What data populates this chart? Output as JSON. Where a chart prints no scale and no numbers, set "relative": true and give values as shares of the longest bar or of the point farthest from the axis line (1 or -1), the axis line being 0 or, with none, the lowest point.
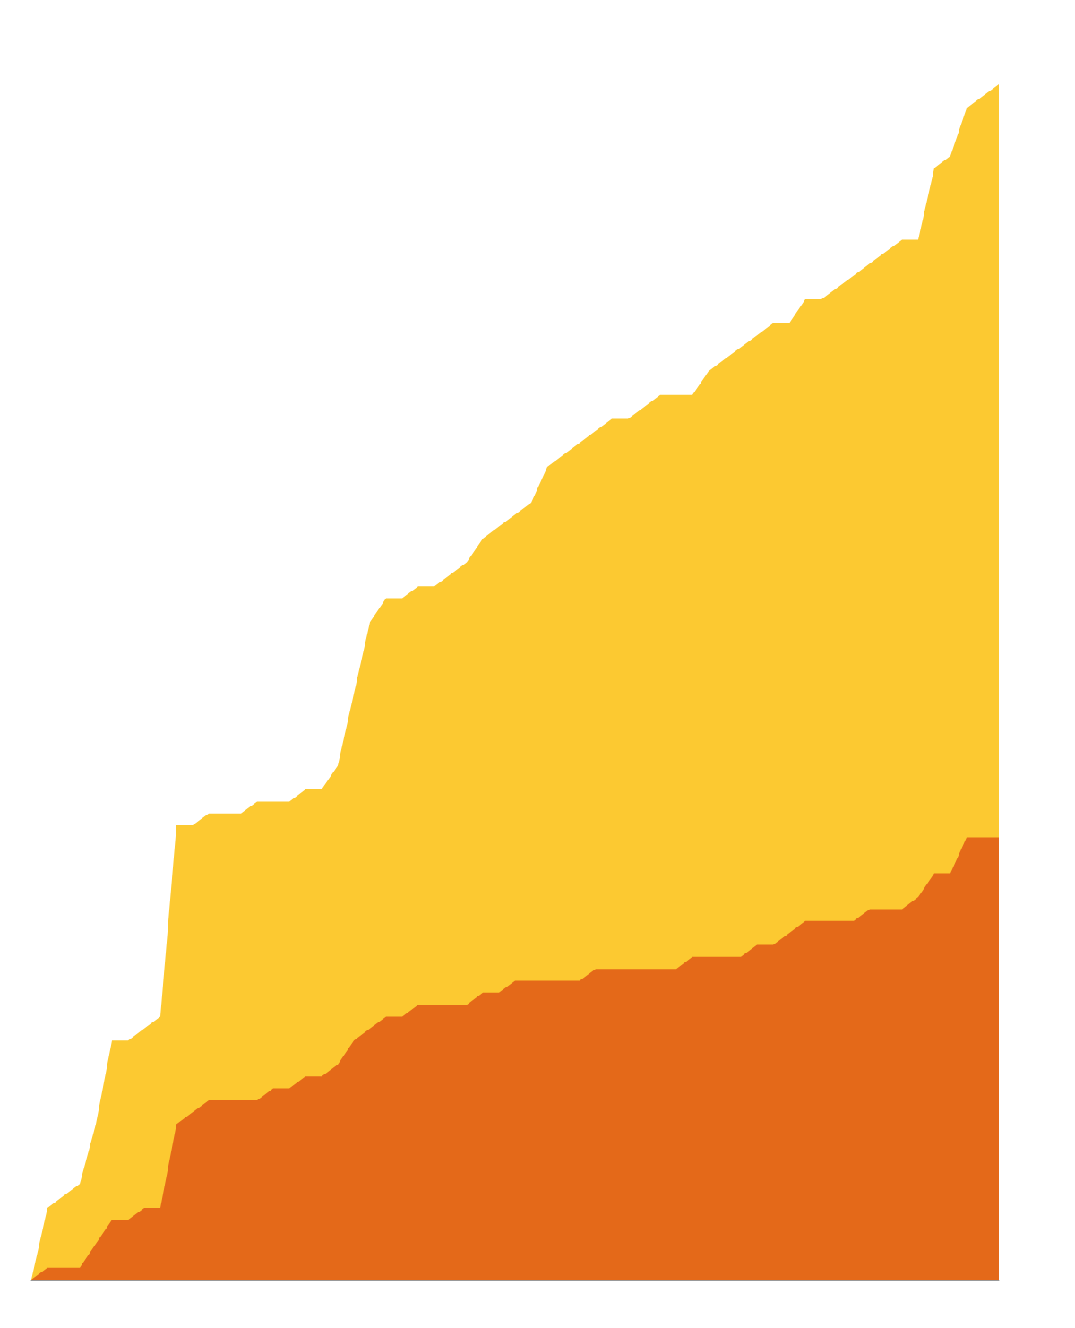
{
  "chart_data": {
    "type": "area",
    "relative": true,
    "categories": [
      null,
      null,
      null,
      null,
      null,
      null,
      null,
      null,
      null,
      null,
      null,
      null,
      null,
      null,
      null,
      null,
      null,
      null,
      null,
      null,
      null,
      null,
      null,
      null,
      null,
      null,
      null,
      null,
      null,
      null,
      null,
      null,
      null,
      null,
      null,
      null,
      null,
      null,
      null,
      null,
      null,
      null,
      null,
      null,
      null,
      null,
      null,
      null,
      null,
      null,
      null,
      null,
      null,
      null,
      null,
      null,
      null,
      null,
      null,
      null,
      null
    ],
    "series": [
      {
        "color": "#fcc931",
        "values": [
          0,
          0.06,
          0.07,
          0.08,
          0.13,
          0.2,
          0.2,
          0.21,
          0.22,
          0.38,
          0.38,
          0.39,
          0.39,
          0.39,
          0.4,
          0.4,
          0.4,
          0.41,
          0.41,
          0.43,
          0.49,
          0.55,
          0.57,
          0.57,
          0.58,
          0.58,
          0.59,
          0.6,
          0.62,
          0.63,
          0.64,
          0.65,
          0.68,
          0.69,
          0.7,
          0.71,
          0.72,
          0.72,
          0.73,
          0.74,
          0.74,
          0.74,
          0.76,
          0.77,
          0.78,
          0.79,
          0.8,
          0.8,
          0.82,
          0.82,
          0.83,
          0.84,
          0.85,
          0.86,
          0.87,
          0.87,
          0.93,
          0.94,
          0.98,
          0.99,
          1
        ]
      },
      {
        "color": "#e46919",
        "values": [
          0,
          0.01,
          0.01,
          0.01,
          0.03,
          0.05,
          0.05,
          0.06,
          0.06,
          0.13,
          0.14,
          0.15,
          0.15,
          0.15,
          0.15,
          0.16,
          0.16,
          0.17,
          0.17,
          0.18,
          0.2,
          0.21,
          0.22,
          0.22,
          0.23,
          0.23,
          0.23,
          0.23,
          0.24,
          0.24,
          0.25,
          0.25,
          0.25,
          0.25,
          0.25,
          0.26,
          0.26,
          0.26,
          0.26,
          0.26,
          0.26,
          0.27,
          0.27,
          0.27,
          0.27,
          0.28,
          0.28,
          0.29,
          0.3,
          0.3,
          0.3,
          0.3,
          0.31,
          0.31,
          0.31,
          0.32,
          0.34,
          0.34,
          0.37,
          0.37,
          0.37
        ]
      }
    ]
  }
}
